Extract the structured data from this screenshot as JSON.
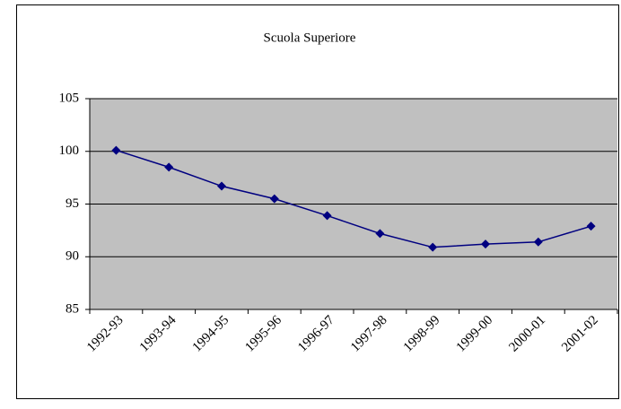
{
  "chart_data": {
    "type": "line",
    "title": "Scuola Superiore",
    "categories": [
      "1992-93",
      "1993-94",
      "1994-95",
      "1995-96",
      "1996-97",
      "1997-98",
      "1998-99",
      "1999-00",
      "2000-01",
      "2001-02"
    ],
    "series": [
      {
        "name": "Scuola Superiore",
        "color": "#000080",
        "values": [
          100.1,
          98.5,
          96.7,
          95.5,
          93.9,
          92.2,
          90.9,
          91.2,
          91.4,
          92.9
        ]
      }
    ],
    "ylim": [
      85,
      105
    ],
    "yticks": [
      85,
      90,
      95,
      100,
      105
    ],
    "grid": true,
    "plot_background": "#c0c0c0"
  }
}
